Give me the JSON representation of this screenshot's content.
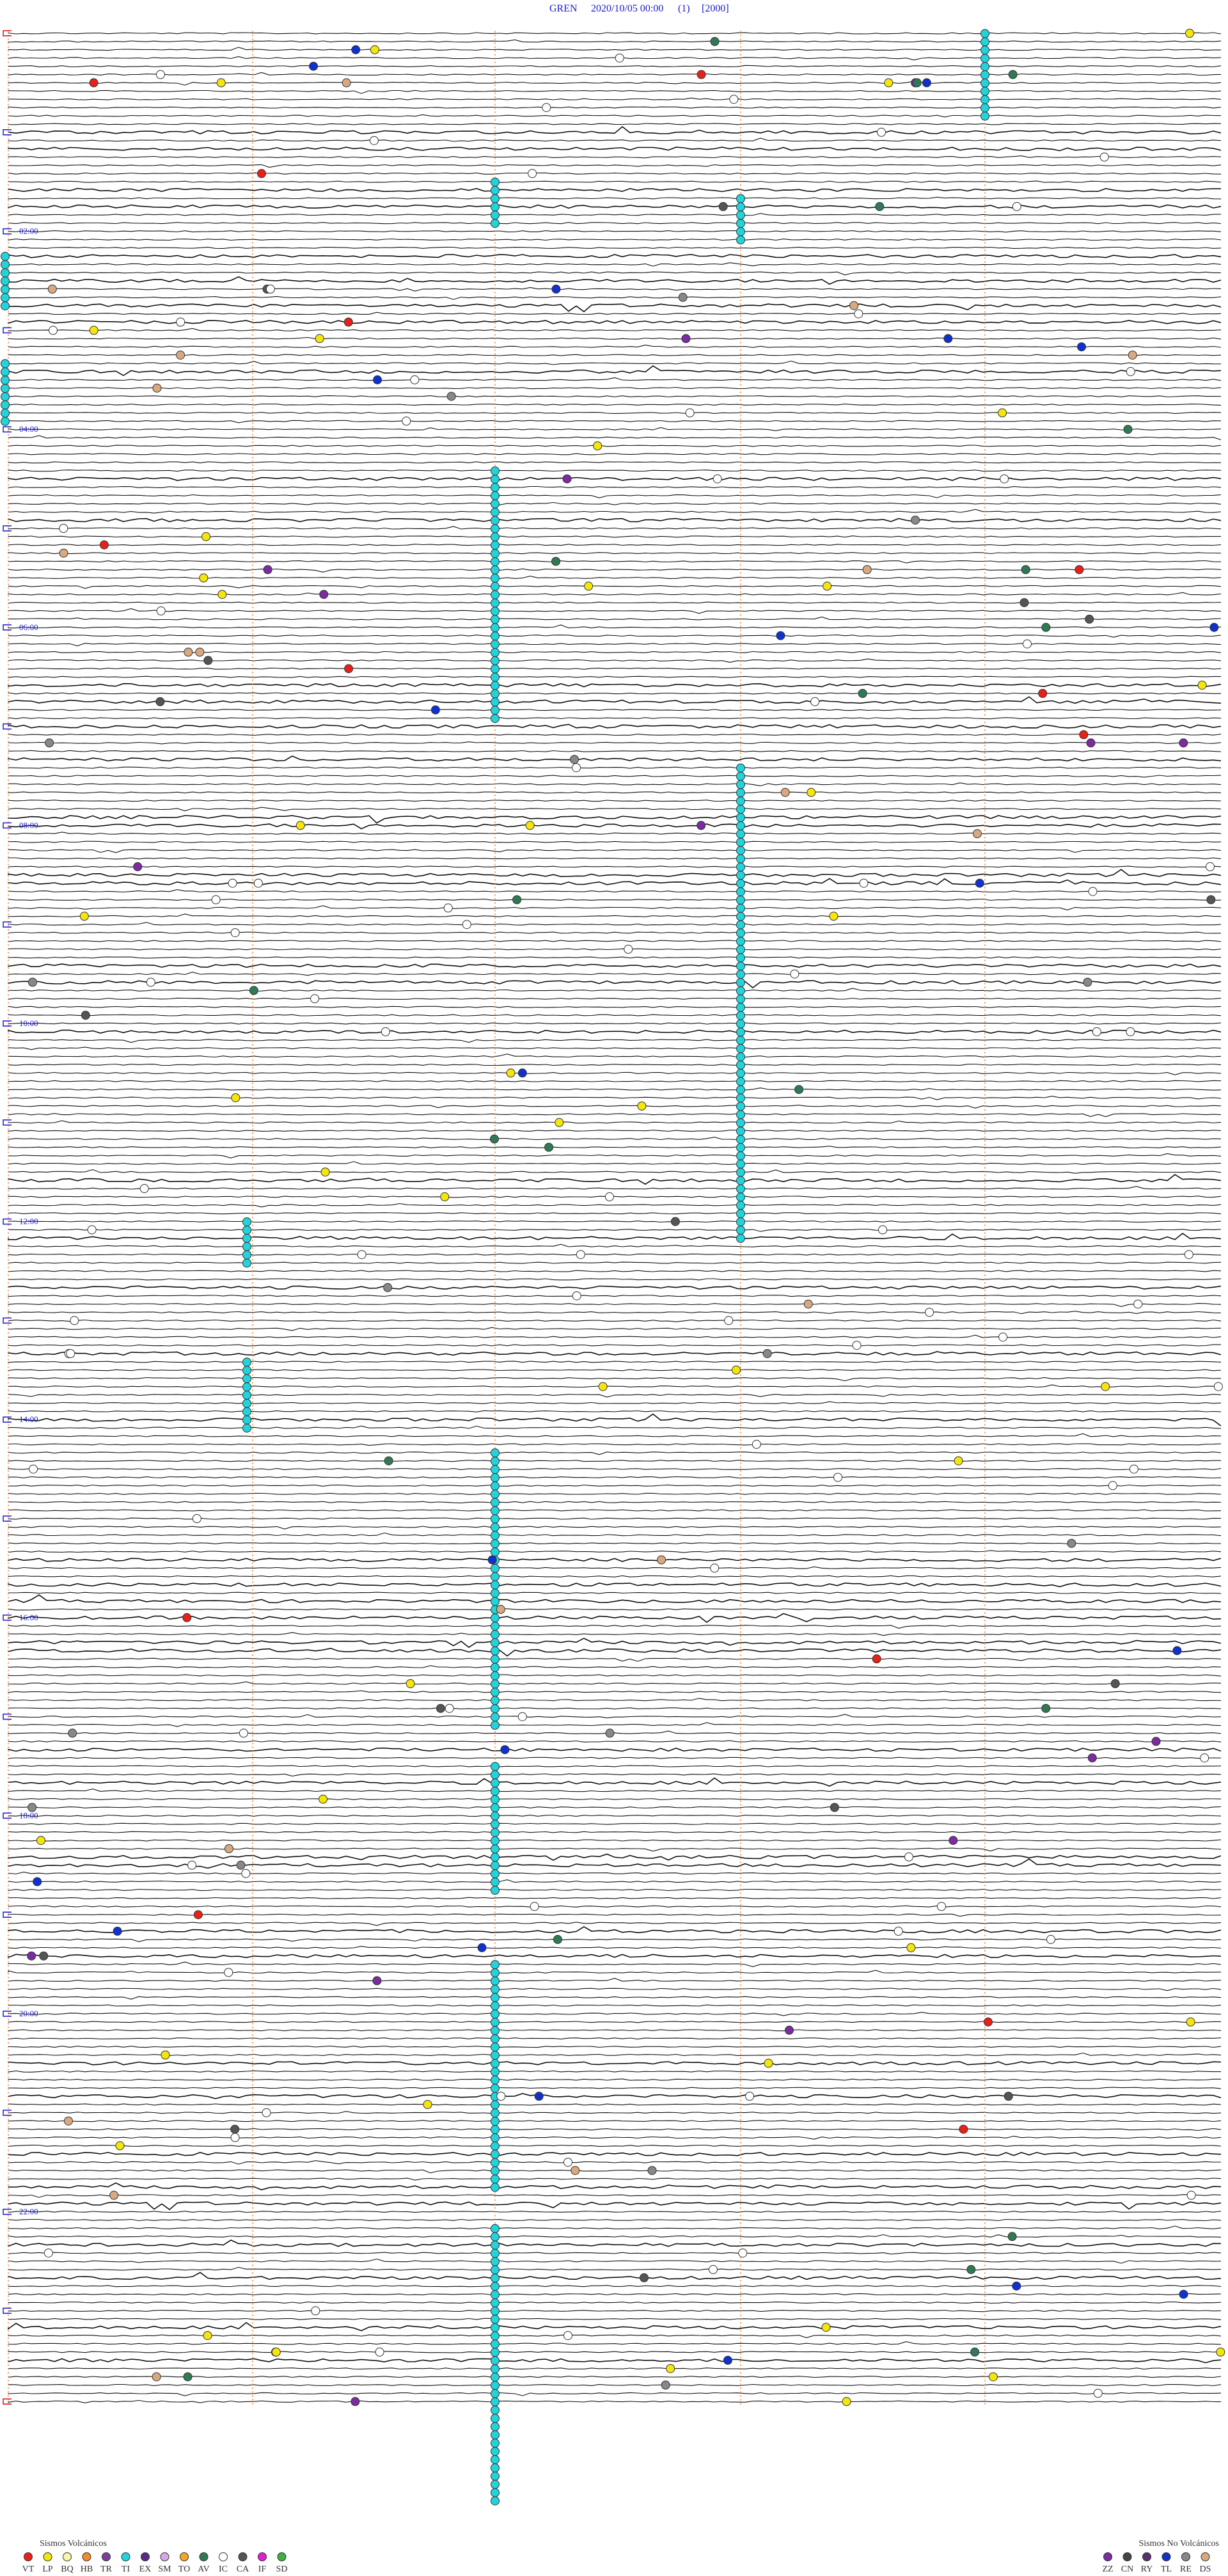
{
  "header": {
    "station": "GREN",
    "datetime": "2020/10/05 00:00",
    "index": "(1)",
    "scale": "[2000]"
  },
  "time_labels": [
    "02:00",
    "04:00",
    "06:00",
    "08:00",
    "10:00",
    "12:00",
    "14:00",
    "16:00",
    "18:00",
    "20:00",
    "22:00"
  ],
  "legend": {
    "volcanic": {
      "title": "Sismos Volcánicos",
      "items": [
        {
          "code": "VT",
          "color": "#e8201a"
        },
        {
          "code": "LP",
          "color": "#f5e60a"
        },
        {
          "code": "BQ",
          "color": "#fbf7a8"
        },
        {
          "code": "HB",
          "color": "#f28c28"
        },
        {
          "code": "TR",
          "color": "#7b3f99"
        },
        {
          "code": "TI",
          "color": "#21d4dc"
        },
        {
          "code": "EX",
          "color": "#5b2a86"
        },
        {
          "code": "SM",
          "color": "#d9a6e8"
        },
        {
          "code": "TO",
          "color": "#f5a623"
        },
        {
          "code": "AV",
          "color": "#2f7a55"
        },
        {
          "code": "IC",
          "color": "#ffffff"
        },
        {
          "code": "CA",
          "color": "#555555"
        },
        {
          "code": "IF",
          "color": "#e020d0"
        },
        {
          "code": "SD",
          "color": "#3cb043"
        }
      ]
    },
    "non_volcanic": {
      "title": "Sismos No Volcánicos",
      "items": [
        {
          "code": "ZZ",
          "color": "#7a2ca0"
        },
        {
          "code": "CN",
          "color": "#444444"
        },
        {
          "code": "RY",
          "color": "#5a3070"
        },
        {
          "code": "TL",
          "color": "#1030d0"
        },
        {
          "code": "RE",
          "color": "#888888"
        },
        {
          "code": "DS",
          "color": "#d8a980"
        }
      ]
    }
  }
}
